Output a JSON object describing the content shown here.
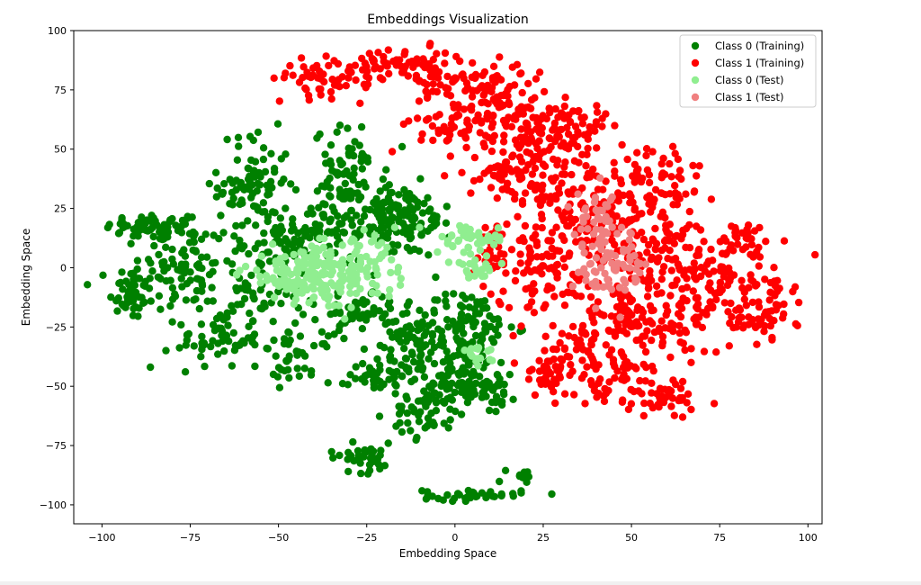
{
  "chart_data": {
    "type": "scatter",
    "title": "Embeddings Visualization",
    "xlabel": "Embedding Space",
    "ylabel": "Embedding Space",
    "xlim": [
      -108,
      104
    ],
    "ylim": [
      -108,
      100
    ],
    "xticks": [
      -100,
      -75,
      -50,
      -25,
      0,
      25,
      50,
      75,
      100
    ],
    "yticks": [
      -100,
      -75,
      -50,
      -25,
      0,
      25,
      50,
      75,
      100
    ],
    "grid": false,
    "legend_position": "top-right",
    "series": [
      {
        "name": "Class 0 (Training)",
        "color": "#008000",
        "clusters": [
          {
            "cx": -85,
            "cy": 17,
            "sx": 7,
            "sy": 3,
            "n": 60
          },
          {
            "cx": -92,
            "cy": -10,
            "sx": 3,
            "sy": 6,
            "n": 50
          },
          {
            "cx": -77,
            "cy": 0,
            "sx": 6,
            "sy": 10,
            "n": 80
          },
          {
            "cx": -67,
            "cy": -30,
            "sx": 6,
            "sy": 6,
            "n": 60
          },
          {
            "cx": -57,
            "cy": 35,
            "sx": 5,
            "sy": 11,
            "n": 90
          },
          {
            "cx": -55,
            "cy": -5,
            "sx": 8,
            "sy": 12,
            "n": 90
          },
          {
            "cx": -45,
            "cy": -38,
            "sx": 5,
            "sy": 5,
            "n": 40
          },
          {
            "cx": -30,
            "cy": 35,
            "sx": 5,
            "sy": 12,
            "n": 90
          },
          {
            "cx": -42,
            "cy": 15,
            "sx": 6,
            "sy": 5,
            "n": 60
          },
          {
            "cx": -20,
            "cy": 20,
            "sx": 6,
            "sy": 6,
            "n": 60
          },
          {
            "cx": -15,
            "cy": 20,
            "sx": 7,
            "sy": 8,
            "n": 80
          },
          {
            "cx": -28,
            "cy": -20,
            "sx": 5,
            "sy": 4,
            "n": 40
          },
          {
            "cx": -15,
            "cy": -30,
            "sx": 5,
            "sy": 10,
            "n": 60
          },
          {
            "cx": -22,
            "cy": -45,
            "sx": 4,
            "sy": 4,
            "n": 40
          },
          {
            "cx": 3,
            "cy": -25,
            "sx": 7,
            "sy": 8,
            "n": 110
          },
          {
            "cx": 0,
            "cy": -45,
            "sx": 7,
            "sy": 6,
            "n": 80
          },
          {
            "cx": -8,
            "cy": -62,
            "sx": 5,
            "sy": 5,
            "n": 50
          },
          {
            "cx": 10,
            "cy": -50,
            "sx": 4,
            "sy": 5,
            "n": 40
          },
          {
            "cx": -26,
            "cy": -80,
            "sx": 5,
            "sy": 3,
            "n": 40
          },
          {
            "cx": 5,
            "cy": -96,
            "sx": 7,
            "sy": 1.2,
            "n": 40
          },
          {
            "cx": 19,
            "cy": -87,
            "sx": 2,
            "sy": 1.5,
            "n": 10
          }
        ]
      },
      {
        "name": "Class 1 (Training)",
        "color": "#ff0000",
        "clusters": [
          {
            "cx": -34,
            "cy": 80,
            "sx": 9,
            "sy": 4,
            "n": 60
          },
          {
            "cx": -20,
            "cy": 87,
            "sx": 5,
            "sy": 2,
            "n": 30
          },
          {
            "cx": -8,
            "cy": 82,
            "sx": 5,
            "sy": 5,
            "n": 50
          },
          {
            "cx": 8,
            "cy": 78,
            "sx": 6,
            "sy": 6,
            "n": 60
          },
          {
            "cx": 0,
            "cy": 60,
            "sx": 6,
            "sy": 6,
            "n": 50
          },
          {
            "cx": 15,
            "cy": 65,
            "sx": 6,
            "sy": 7,
            "n": 60
          },
          {
            "cx": 25,
            "cy": 55,
            "sx": 6,
            "sy": 6,
            "n": 60
          },
          {
            "cx": 35,
            "cy": 60,
            "sx": 4,
            "sy": 5,
            "n": 40
          },
          {
            "cx": 15,
            "cy": 40,
            "sx": 6,
            "sy": 5,
            "n": 50
          },
          {
            "cx": 27,
            "cy": 35,
            "sx": 7,
            "sy": 8,
            "n": 70
          },
          {
            "cx": 55,
            "cy": 35,
            "sx": 8,
            "sy": 10,
            "n": 90
          },
          {
            "cx": 40,
            "cy": 15,
            "sx": 8,
            "sy": 10,
            "n": 90
          },
          {
            "cx": 25,
            "cy": 0,
            "sx": 8,
            "sy": 10,
            "n": 90
          },
          {
            "cx": 10,
            "cy": 8,
            "sx": 3,
            "sy": 6,
            "n": 30
          },
          {
            "cx": 60,
            "cy": 5,
            "sx": 8,
            "sy": 10,
            "n": 90
          },
          {
            "cx": 75,
            "cy": -5,
            "sx": 6,
            "sy": 8,
            "n": 60
          },
          {
            "cx": 82,
            "cy": 12,
            "sx": 4,
            "sy": 4,
            "n": 30
          },
          {
            "cx": 88,
            "cy": -12,
            "sx": 4,
            "sy": 8,
            "n": 40
          },
          {
            "cx": 85,
            "cy": -22,
            "sx": 6,
            "sy": 3,
            "n": 30
          },
          {
            "cx": 50,
            "cy": -20,
            "sx": 8,
            "sy": 8,
            "n": 70
          },
          {
            "cx": 65,
            "cy": -25,
            "sx": 5,
            "sy": 6,
            "n": 40
          },
          {
            "cx": 35,
            "cy": -30,
            "sx": 6,
            "sy": 6,
            "n": 50
          },
          {
            "cx": 28,
            "cy": -45,
            "sx": 5,
            "sy": 5,
            "n": 40
          },
          {
            "cx": 45,
            "cy": -45,
            "sx": 8,
            "sy": 6,
            "n": 70
          },
          {
            "cx": 60,
            "cy": -55,
            "sx": 6,
            "sy": 4,
            "n": 40
          }
        ]
      },
      {
        "name": "Class 0 (Test)",
        "color": "#90ee90",
        "clusters": [
          {
            "cx": -40,
            "cy": -3,
            "sx": 10,
            "sy": 6,
            "n": 160
          },
          {
            "cx": -28,
            "cy": 0,
            "sx": 6,
            "sy": 6,
            "n": 60
          },
          {
            "cx": 5,
            "cy": 12,
            "sx": 5,
            "sy": 3,
            "n": 50
          },
          {
            "cx": 5,
            "cy": 0,
            "sx": 3,
            "sy": 3,
            "n": 25
          },
          {
            "cx": 7,
            "cy": -38,
            "sx": 3,
            "sy": 2,
            "n": 15
          }
        ]
      },
      {
        "name": "Class 1 (Test)",
        "color": "#f08080",
        "clusters": [
          {
            "cx": 40,
            "cy": 20,
            "sx": 3,
            "sy": 6,
            "n": 40
          },
          {
            "cx": 45,
            "cy": 0,
            "sx": 5,
            "sy": 8,
            "n": 70
          }
        ]
      }
    ]
  }
}
